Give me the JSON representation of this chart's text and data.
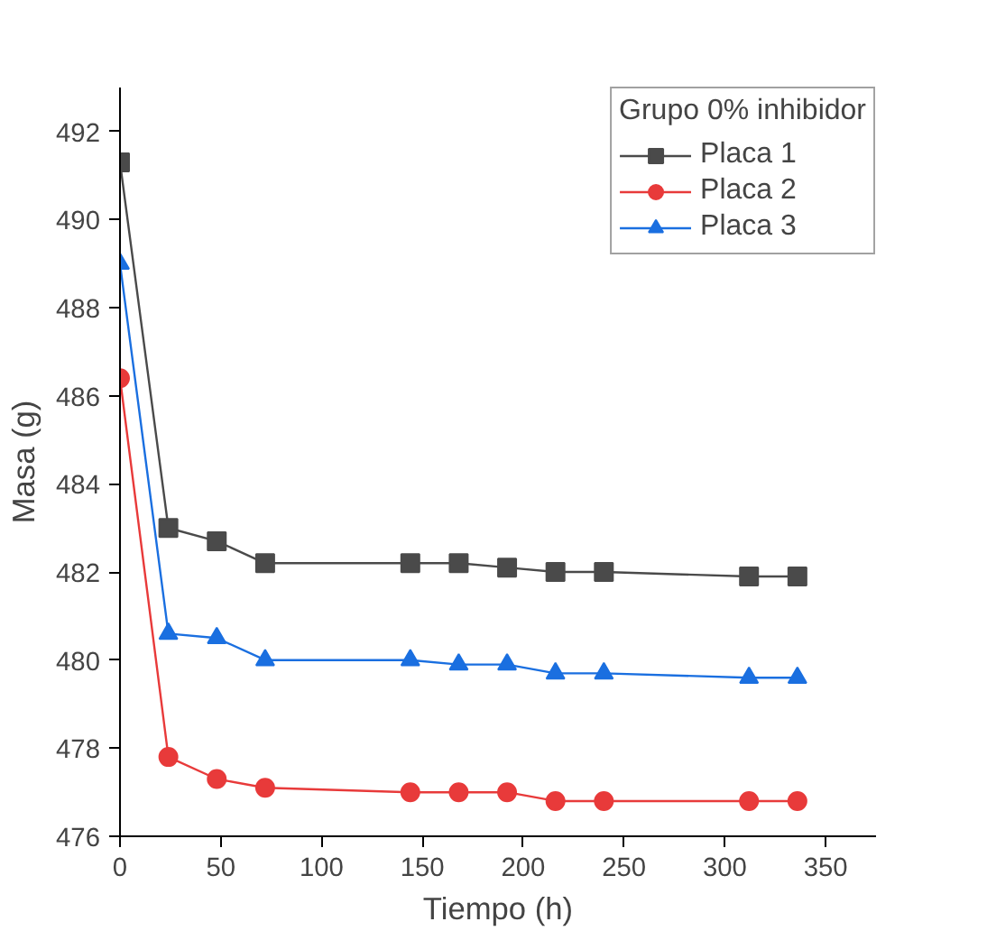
{
  "chart_data": {
    "type": "line",
    "xlabel": "Tiempo (h)",
    "ylabel": "Masa (g)",
    "legend_title": "Grupo 0% inhibidor",
    "legend": "top right",
    "grid": false,
    "line_style": "solid",
    "x": [
      0,
      24,
      48,
      72,
      144,
      168,
      192,
      216,
      240,
      312,
      336
    ],
    "xlim": [
      0,
      375
    ],
    "xticks": [
      0,
      50,
      100,
      150,
      200,
      250,
      300,
      350
    ],
    "ylim": [
      476,
      493
    ],
    "yticks": [
      476,
      478,
      480,
      482,
      484,
      486,
      488,
      490,
      492
    ],
    "series": [
      {
        "name": "Placa 1",
        "color": "#4a4a4a",
        "marker": "square",
        "values": [
          491.3,
          483.0,
          482.7,
          482.2,
          482.2,
          482.2,
          482.1,
          482.0,
          482.0,
          481.9,
          481.9
        ]
      },
      {
        "name": "Placa 2",
        "color": "#e83a3a",
        "marker": "circle",
        "values": [
          486.4,
          477.8,
          477.3,
          477.1,
          477.0,
          477.0,
          477.0,
          476.8,
          476.8,
          476.8,
          476.8
        ]
      },
      {
        "name": "Placa 3",
        "color": "#1a6fe0",
        "marker": "triangle",
        "values": [
          489.0,
          480.6,
          480.5,
          480.0,
          480.0,
          479.9,
          479.9,
          479.7,
          479.7,
          479.6,
          479.6
        ]
      }
    ]
  }
}
